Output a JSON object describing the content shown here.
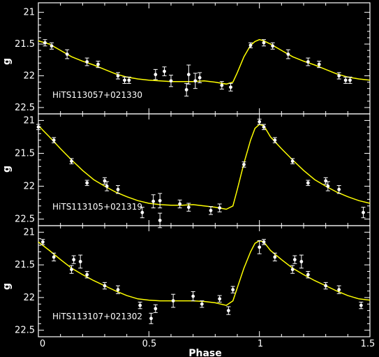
{
  "chart_data": [
    {
      "type": "scatter",
      "label": "HiTS113057+021330",
      "ylabel": "g",
      "xlabel": "",
      "xlim": [
        0,
        1.5
      ],
      "ylim": [
        22.6,
        20.85
      ],
      "yticks": [
        21,
        21.5,
        22,
        22.5
      ],
      "xticks": [
        0,
        0.5,
        1,
        1.5
      ],
      "tick_labels_y": [
        "21",
        "21.5",
        "22",
        "22.5"
      ],
      "points": [
        {
          "x": 0.03,
          "y": 21.48,
          "err": 0.05
        },
        {
          "x": 0.06,
          "y": 21.53,
          "err": 0.05
        },
        {
          "x": 0.13,
          "y": 21.66,
          "err": 0.07
        },
        {
          "x": 0.22,
          "y": 21.78,
          "err": 0.06
        },
        {
          "x": 0.27,
          "y": 21.82,
          "err": 0.05
        },
        {
          "x": 0.36,
          "y": 22.0,
          "err": 0.05
        },
        {
          "x": 0.39,
          "y": 22.07,
          "err": 0.05
        },
        {
          "x": 0.41,
          "y": 22.07,
          "err": 0.05
        },
        {
          "x": 0.53,
          "y": 21.98,
          "err": 0.08
        },
        {
          "x": 0.57,
          "y": 21.93,
          "err": 0.07
        },
        {
          "x": 0.6,
          "y": 22.08,
          "err": 0.09
        },
        {
          "x": 0.67,
          "y": 22.22,
          "err": 0.1
        },
        {
          "x": 0.68,
          "y": 21.98,
          "err": 0.15
        },
        {
          "x": 0.71,
          "y": 22.08,
          "err": 0.12
        },
        {
          "x": 0.73,
          "y": 22.03,
          "err": 0.08
        },
        {
          "x": 0.83,
          "y": 22.15,
          "err": 0.06
        },
        {
          "x": 0.87,
          "y": 22.18,
          "err": 0.06
        },
        {
          "x": 0.96,
          "y": 21.52,
          "err": 0.04
        },
        {
          "x": 1.02,
          "y": 21.48,
          "err": 0.05
        },
        {
          "x": 1.06,
          "y": 21.53,
          "err": 0.05
        },
        {
          "x": 1.13,
          "y": 21.66,
          "err": 0.07
        },
        {
          "x": 1.22,
          "y": 21.78,
          "err": 0.06
        },
        {
          "x": 1.27,
          "y": 21.82,
          "err": 0.05
        },
        {
          "x": 1.36,
          "y": 22.0,
          "err": 0.05
        },
        {
          "x": 1.39,
          "y": 22.07,
          "err": 0.05
        },
        {
          "x": 1.41,
          "y": 22.07,
          "err": 0.05
        }
      ],
      "curve": [
        [
          0.0,
          21.45
        ],
        [
          0.05,
          21.5
        ],
        [
          0.1,
          21.6
        ],
        [
          0.15,
          21.7
        ],
        [
          0.2,
          21.77
        ],
        [
          0.25,
          21.83
        ],
        [
          0.3,
          21.9
        ],
        [
          0.35,
          21.97
        ],
        [
          0.4,
          22.02
        ],
        [
          0.45,
          22.05
        ],
        [
          0.5,
          22.07
        ],
        [
          0.55,
          22.08
        ],
        [
          0.6,
          22.09
        ],
        [
          0.65,
          22.09
        ],
        [
          0.7,
          22.09
        ],
        [
          0.75,
          22.08
        ],
        [
          0.8,
          22.1
        ],
        [
          0.85,
          22.13
        ],
        [
          0.88,
          22.1
        ],
        [
          0.9,
          21.95
        ],
        [
          0.93,
          21.7
        ],
        [
          0.96,
          21.52
        ],
        [
          0.98,
          21.46
        ],
        [
          1.0,
          21.43
        ],
        [
          1.02,
          21.45
        ],
        [
          1.05,
          21.5
        ],
        [
          1.1,
          21.6
        ],
        [
          1.15,
          21.7
        ],
        [
          1.2,
          21.77
        ],
        [
          1.25,
          21.83
        ],
        [
          1.3,
          21.9
        ],
        [
          1.35,
          21.97
        ],
        [
          1.4,
          22.02
        ],
        [
          1.45,
          22.05
        ],
        [
          1.5,
          22.07
        ]
      ]
    },
    {
      "type": "scatter",
      "label": "HiTS113105+021319",
      "ylabel": "g",
      "xlabel": "",
      "xlim": [
        0,
        1.5
      ],
      "ylim": [
        22.6,
        20.9
      ],
      "yticks": [
        21,
        21.5,
        22,
        22.5
      ],
      "xticks": [
        0,
        0.5,
        1,
        1.5
      ],
      "tick_labels_y": [
        "21",
        "21.5",
        "22",
        "22.5"
      ],
      "points": [
        {
          "x": 0.0,
          "y": 21.1,
          "err": 0.04
        },
        {
          "x": 0.07,
          "y": 21.3,
          "err": 0.04
        },
        {
          "x": 0.15,
          "y": 21.62,
          "err": 0.04
        },
        {
          "x": 0.22,
          "y": 21.95,
          "err": 0.04
        },
        {
          "x": 0.3,
          "y": 21.92,
          "err": 0.05
        },
        {
          "x": 0.31,
          "y": 22.0,
          "err": 0.07
        },
        {
          "x": 0.36,
          "y": 22.05,
          "err": 0.06
        },
        {
          "x": 0.47,
          "y": 22.4,
          "err": 0.08
        },
        {
          "x": 0.52,
          "y": 22.23,
          "err": 0.1
        },
        {
          "x": 0.55,
          "y": 22.22,
          "err": 0.11
        },
        {
          "x": 0.55,
          "y": 22.52,
          "err": 0.11
        },
        {
          "x": 0.64,
          "y": 22.27,
          "err": 0.06
        },
        {
          "x": 0.68,
          "y": 22.32,
          "err": 0.06
        },
        {
          "x": 0.78,
          "y": 22.37,
          "err": 0.06
        },
        {
          "x": 0.82,
          "y": 22.33,
          "err": 0.06
        },
        {
          "x": 0.93,
          "y": 21.67,
          "err": 0.04
        },
        {
          "x": 1.0,
          "y": 21.02,
          "err": 0.04
        },
        {
          "x": 1.02,
          "y": 21.1,
          "err": 0.04
        },
        {
          "x": 1.07,
          "y": 21.3,
          "err": 0.04
        },
        {
          "x": 1.15,
          "y": 21.62,
          "err": 0.04
        },
        {
          "x": 1.22,
          "y": 21.95,
          "err": 0.04
        },
        {
          "x": 1.3,
          "y": 21.92,
          "err": 0.05
        },
        {
          "x": 1.31,
          "y": 22.0,
          "err": 0.07
        },
        {
          "x": 1.36,
          "y": 22.05,
          "err": 0.06
        },
        {
          "x": 1.47,
          "y": 22.4,
          "err": 0.08
        }
      ],
      "curve": [
        [
          0.0,
          21.08
        ],
        [
          0.05,
          21.25
        ],
        [
          0.1,
          21.43
        ],
        [
          0.15,
          21.6
        ],
        [
          0.2,
          21.76
        ],
        [
          0.25,
          21.9
        ],
        [
          0.3,
          22.0
        ],
        [
          0.35,
          22.09
        ],
        [
          0.4,
          22.16
        ],
        [
          0.45,
          22.22
        ],
        [
          0.5,
          22.26
        ],
        [
          0.55,
          22.28
        ],
        [
          0.6,
          22.29
        ],
        [
          0.65,
          22.29
        ],
        [
          0.7,
          22.28
        ],
        [
          0.75,
          22.3
        ],
        [
          0.8,
          22.32
        ],
        [
          0.85,
          22.35
        ],
        [
          0.88,
          22.3
        ],
        [
          0.9,
          22.05
        ],
        [
          0.93,
          21.65
        ],
        [
          0.96,
          21.3
        ],
        [
          0.98,
          21.12
        ],
        [
          1.0,
          21.06
        ],
        [
          1.02,
          21.08
        ],
        [
          1.05,
          21.25
        ],
        [
          1.1,
          21.43
        ],
        [
          1.15,
          21.6
        ],
        [
          1.2,
          21.76
        ],
        [
          1.25,
          21.9
        ],
        [
          1.3,
          22.0
        ],
        [
          1.35,
          22.09
        ],
        [
          1.4,
          22.16
        ],
        [
          1.45,
          22.22
        ],
        [
          1.5,
          22.26
        ]
      ]
    },
    {
      "type": "scatter",
      "label": "HiTS113107+021302",
      "ylabel": "g",
      "xlabel": "Phase",
      "xlim": [
        0,
        1.5
      ],
      "ylim": [
        22.6,
        20.9
      ],
      "yticks": [
        21,
        21.5,
        22,
        22.5
      ],
      "xticks": [
        0,
        0.5,
        1,
        1.5
      ],
      "tick_labels_y": [
        "21",
        "21.5",
        "22",
        "22.5"
      ],
      "tick_labels_x": [
        "0",
        "0.5",
        "1",
        "1.5"
      ],
      "points": [
        {
          "x": 0.02,
          "y": 21.15,
          "err": 0.04
        },
        {
          "x": 0.07,
          "y": 21.38,
          "err": 0.06
        },
        {
          "x": 0.15,
          "y": 21.57,
          "err": 0.06
        },
        {
          "x": 0.16,
          "y": 21.42,
          "err": 0.06
        },
        {
          "x": 0.19,
          "y": 21.45,
          "err": 0.1
        },
        {
          "x": 0.22,
          "y": 21.65,
          "err": 0.05
        },
        {
          "x": 0.3,
          "y": 21.82,
          "err": 0.05
        },
        {
          "x": 0.36,
          "y": 21.88,
          "err": 0.06
        },
        {
          "x": 0.46,
          "y": 22.12,
          "err": 0.05
        },
        {
          "x": 0.51,
          "y": 22.32,
          "err": 0.08
        },
        {
          "x": 0.53,
          "y": 22.17,
          "err": 0.06
        },
        {
          "x": 0.61,
          "y": 22.05,
          "err": 0.1
        },
        {
          "x": 0.7,
          "y": 21.98,
          "err": 0.07
        },
        {
          "x": 0.74,
          "y": 22.1,
          "err": 0.05
        },
        {
          "x": 0.82,
          "y": 22.02,
          "err": 0.05
        },
        {
          "x": 0.86,
          "y": 22.2,
          "err": 0.06
        },
        {
          "x": 0.88,
          "y": 21.88,
          "err": 0.05
        },
        {
          "x": 1.0,
          "y": 21.23,
          "err": 0.1
        },
        {
          "x": 1.02,
          "y": 21.15,
          "err": 0.04
        },
        {
          "x": 1.07,
          "y": 21.38,
          "err": 0.06
        },
        {
          "x": 1.15,
          "y": 21.57,
          "err": 0.06
        },
        {
          "x": 1.16,
          "y": 21.42,
          "err": 0.06
        },
        {
          "x": 1.19,
          "y": 21.45,
          "err": 0.1
        },
        {
          "x": 1.22,
          "y": 21.65,
          "err": 0.05
        },
        {
          "x": 1.3,
          "y": 21.82,
          "err": 0.05
        },
        {
          "x": 1.36,
          "y": 21.88,
          "err": 0.06
        },
        {
          "x": 1.46,
          "y": 22.12,
          "err": 0.05
        }
      ],
      "curve": [
        [
          0.0,
          21.15
        ],
        [
          0.05,
          21.28
        ],
        [
          0.1,
          21.42
        ],
        [
          0.15,
          21.55
        ],
        [
          0.2,
          21.65
        ],
        [
          0.25,
          21.74
        ],
        [
          0.3,
          21.82
        ],
        [
          0.35,
          21.9
        ],
        [
          0.4,
          21.97
        ],
        [
          0.45,
          22.02
        ],
        [
          0.5,
          22.04
        ],
        [
          0.55,
          22.05
        ],
        [
          0.6,
          22.05
        ],
        [
          0.65,
          22.05
        ],
        [
          0.7,
          22.05
        ],
        [
          0.75,
          22.06
        ],
        [
          0.8,
          22.08
        ],
        [
          0.85,
          22.12
        ],
        [
          0.88,
          22.05
        ],
        [
          0.9,
          21.85
        ],
        [
          0.93,
          21.55
        ],
        [
          0.96,
          21.3
        ],
        [
          0.98,
          21.17
        ],
        [
          1.0,
          21.13
        ],
        [
          1.02,
          21.15
        ],
        [
          1.05,
          21.28
        ],
        [
          1.1,
          21.42
        ],
        [
          1.15,
          21.55
        ],
        [
          1.2,
          21.65
        ],
        [
          1.25,
          21.74
        ],
        [
          1.3,
          21.82
        ],
        [
          1.35,
          21.9
        ],
        [
          1.4,
          21.97
        ],
        [
          1.45,
          22.02
        ],
        [
          1.5,
          22.04
        ]
      ]
    }
  ],
  "colors": {
    "background": "#000000",
    "axes": "#ffffff",
    "points": "#ffffff",
    "curve": "#ffff00"
  }
}
